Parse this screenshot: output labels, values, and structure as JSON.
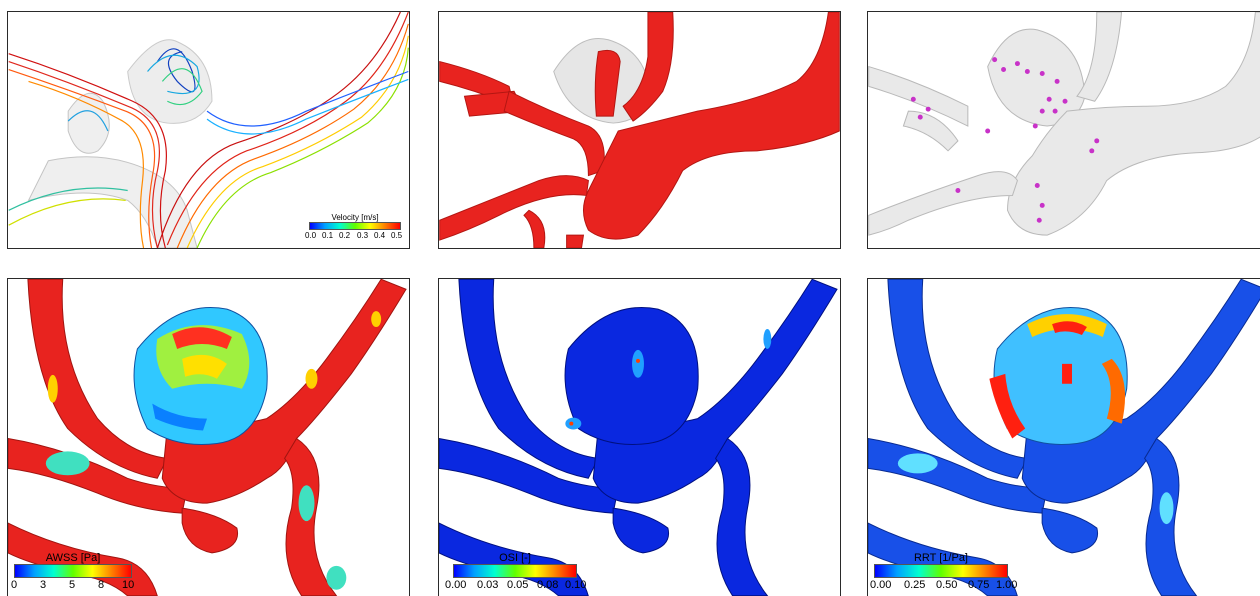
{
  "panels": [
    {
      "id": "velocity-streamlines",
      "legend": {
        "title": "Velocity [m/s]",
        "ticks": [
          "0.0",
          "0.1",
          "0.2",
          "0.3",
          "0.4",
          "0.5"
        ]
      }
    },
    {
      "id": "vessel-geometry"
    },
    {
      "id": "thrombus-markers"
    },
    {
      "id": "awss-map",
      "legend": {
        "title": "AWSS [Pa]",
        "ticks": [
          "0",
          "3",
          "5",
          "8",
          "10"
        ]
      }
    },
    {
      "id": "osi-map",
      "legend": {
        "title": "OSI [-]",
        "ticks": [
          "0.00",
          "0.03",
          "0.05",
          "0.08",
          "0.10"
        ]
      }
    },
    {
      "id": "rrt-map",
      "legend": {
        "title": "RRT [1/Pa]",
        "ticks": [
          "0.00",
          "0.25",
          "0.50",
          "0.75",
          "1.00"
        ]
      }
    }
  ],
  "colors": {
    "colormap": [
      "#0000ff",
      "#00a0ff",
      "#00ffd0",
      "#60ff00",
      "#ffff00",
      "#ff8000",
      "#ff0000"
    ],
    "vessel_red": "#e8231f",
    "marker_magenta": "#c832c8",
    "ghost_gray": "#d9d9d9"
  }
}
